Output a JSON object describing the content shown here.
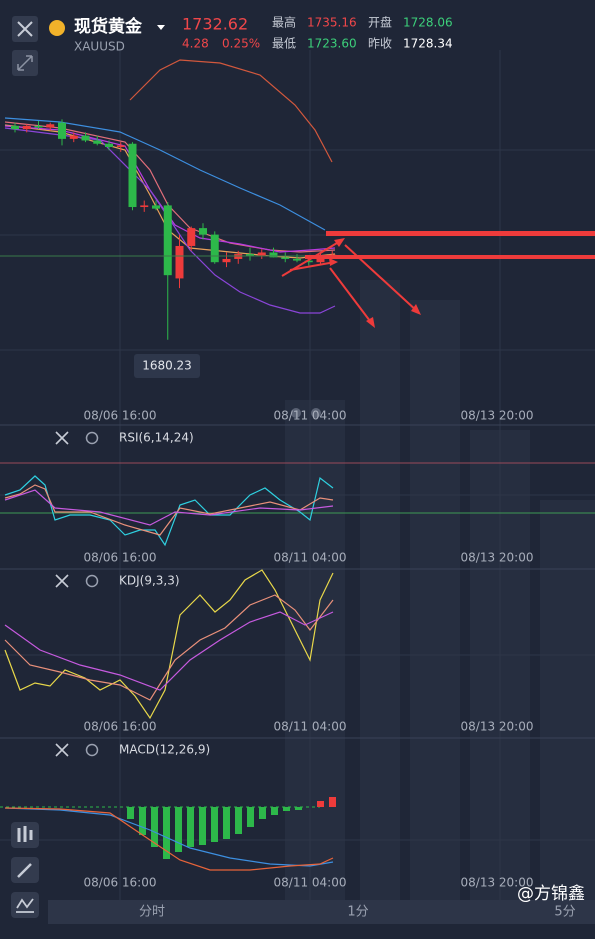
{
  "header": {
    "name": "现货黄金",
    "symbol": "XAUUSD",
    "price": "1732.62",
    "change": "4.28",
    "change_pct": "0.25%",
    "stats": [
      {
        "label": "最高",
        "value": "1735.16",
        "color": "#f0474a"
      },
      {
        "label": "最低",
        "value": "1723.60",
        "color": "#3ccf7a"
      },
      {
        "label": "开盘",
        "value": "1728.06",
        "color": "#3ccf7a"
      },
      {
        "label": "昨收",
        "value": "1728.34",
        "color": "#ffffff"
      }
    ]
  },
  "main": {
    "low_label": "1680.23",
    "x_labels": [
      "08/06 16:00",
      "08/11 04:00",
      "08/13 20:00"
    ],
    "price_range": [
      1640,
      1860
    ],
    "up_color": "#ee3b3b",
    "down_color": "#2db84a",
    "candles": [
      [
        1812,
        1814,
        1808,
        1810
      ],
      [
        1810,
        1813,
        1808,
        1812
      ],
      [
        1812,
        1815,
        1810,
        1811
      ],
      [
        1811,
        1814,
        1809,
        1813
      ],
      [
        1814,
        1816,
        1800,
        1804
      ],
      [
        1804,
        1808,
        1802,
        1806
      ],
      [
        1806,
        1808,
        1802,
        1803
      ],
      [
        1803,
        1806,
        1800,
        1801
      ],
      [
        1801,
        1803,
        1797,
        1799
      ],
      [
        1799,
        1802,
        1796,
        1800
      ],
      [
        1801,
        1802,
        1760,
        1762
      ],
      [
        1762,
        1766,
        1759,
        1763
      ],
      [
        1763,
        1766,
        1760,
        1761
      ],
      [
        1763,
        1765,
        1680.23,
        1720
      ],
      [
        1718,
        1745,
        1712,
        1738
      ],
      [
        1738,
        1750,
        1735,
        1749
      ],
      [
        1749,
        1752,
        1742,
        1745
      ],
      [
        1745,
        1747,
        1727,
        1728
      ],
      [
        1728,
        1734,
        1725,
        1730
      ],
      [
        1730,
        1735,
        1727,
        1733
      ],
      [
        1733,
        1737,
        1729,
        1732
      ],
      [
        1732,
        1736,
        1730,
        1734
      ],
      [
        1734,
        1737,
        1731,
        1731
      ],
      [
        1731,
        1734,
        1728,
        1730
      ],
      [
        1730,
        1733,
        1728,
        1729
      ],
      [
        1729,
        1731,
        1726,
        1728
      ],
      [
        1728,
        1734,
        1727,
        1732
      ],
      [
        1732,
        1735,
        1730,
        1732.62
      ]
    ]
  },
  "indicators": [
    {
      "name": "RSI(6,14,24)",
      "x_labels": [
        "08/06 16:00",
        "08/11 04:00",
        "08/13 20:00"
      ]
    },
    {
      "name": "KDJ(9,3,3)",
      "x_labels": [
        "08/06 16:00",
        "08/11 04:00",
        "08/13 20:00"
      ]
    },
    {
      "name": "MACD(12,26,9)",
      "x_labels": [
        "08/06 16:00",
        "08/11 04:00",
        "08/13 20:00"
      ]
    }
  ],
  "tabs": [
    "分时",
    "1分",
    "5分"
  ],
  "watermark": "@方锦鑫"
}
